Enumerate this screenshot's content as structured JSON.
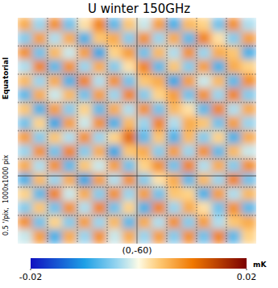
{
  "chart_data": {
    "type": "heatmap",
    "title": "U winter 150GHz",
    "annotations": [
      "Equatorial",
      "0.5 '/pix,  1000x1000 pix",
      "(0,-60)"
    ],
    "grid": true,
    "tick_labels": false,
    "cells": [
      [
        0.006,
        -0.004,
        0.008,
        -0.006,
        0.002,
        0.009,
        -0.007,
        0.004,
        -0.002,
        0.007,
        -0.008,
        0.005,
        0.003,
        -0.006,
        0.008,
        -0.003
      ],
      [
        -0.005,
        0.007,
        -0.003,
        0.006,
        -0.008,
        0.004,
        0.006,
        -0.005,
        0.008,
        -0.004,
        0.006,
        -0.007,
        0.009,
        0.002,
        -0.005,
        0.007
      ],
      [
        0.008,
        -0.006,
        0.005,
        -0.002,
        0.007,
        -0.009,
        0.003,
        0.007,
        -0.006,
        0.005,
        -0.003,
        0.008,
        -0.004,
        0.006,
        0.004,
        -0.008
      ],
      [
        -0.003,
        0.009,
        -0.007,
        0.008,
        -0.004,
        0.006,
        -0.005,
        0.002,
        0.009,
        -0.007,
        0.004,
        -0.005,
        0.007,
        -0.008,
        0.006,
        0.003
      ],
      [
        0.005,
        -0.004,
        0.006,
        -0.008,
        0.009,
        -0.003,
        0.008,
        -0.006,
        0.004,
        0.006,
        -0.009,
        0.007,
        -0.002,
        0.005,
        -0.007,
        0.008
      ],
      [
        -0.007,
        0.006,
        -0.002,
        0.005,
        -0.006,
        0.007,
        -0.004,
        0.009,
        -0.005,
        0.003,
        0.007,
        -0.006,
        0.008,
        -0.004,
        0.009,
        -0.005
      ],
      [
        0.004,
        -0.008,
        0.007,
        -0.005,
        0.003,
        -0.007,
        0.006,
        -0.003,
        0.008,
        -0.006,
        0.005,
        0.002,
        -0.007,
        0.009,
        -0.003,
        0.006
      ],
      [
        -0.006,
        0.003,
        -0.009,
        0.007,
        -0.002,
        0.008,
        -0.008,
        0.005,
        -0.004,
        0.009,
        -0.003,
        0.006,
        0.004,
        -0.006,
        0.007,
        -0.004
      ],
      [
        0.007,
        -0.005,
        0.004,
        -0.003,
        0.008,
        -0.004,
        0.003,
        0.011,
        -0.007,
        0.004,
        -0.008,
        0.005,
        -0.005,
        0.003,
        -0.008,
        0.006
      ],
      [
        -0.004,
        0.008,
        -0.006,
        0.009,
        -0.005,
        0.006,
        -0.009,
        0.004,
        0.006,
        -0.005,
        0.007,
        -0.004,
        0.008,
        -0.007,
        0.005,
        -0.002
      ],
      [
        0.006,
        -0.003,
        0.008,
        -0.007,
        0.004,
        -0.002,
        0.007,
        -0.006,
        0.003,
        0.008,
        -0.006,
        0.009,
        -0.003,
        0.006,
        -0.005,
        0.008
      ],
      [
        -0.008,
        0.005,
        -0.004,
        0.006,
        -0.009,
        0.007,
        -0.003,
        0.008,
        -0.005,
        0.002,
        0.006,
        -0.007,
        0.005,
        -0.004,
        0.009,
        -0.006
      ],
      [
        0.003,
        -0.007,
        0.009,
        -0.002,
        0.006,
        -0.005,
        0.008,
        -0.004,
        0.007,
        -0.006,
        0.004,
        0.003,
        -0.008,
        0.007,
        -0.003,
        0.005
      ],
      [
        -0.005,
        0.004,
        -0.006,
        0.008,
        -0.003,
        0.009,
        -0.006,
        0.003,
        -0.008,
        0.009,
        -0.004,
        0.006,
        0.002,
        -0.006,
        0.008,
        -0.007
      ],
      [
        0.008,
        -0.006,
        0.003,
        -0.005,
        0.007,
        -0.004,
        0.005,
        -0.007,
        0.006,
        -0.003,
        0.008,
        -0.005,
        0.007,
        -0.003,
        0.004,
        0.006
      ],
      [
        -0.002,
        0.007,
        -0.008,
        0.006,
        -0.004,
        0.008,
        -0.002,
        0.006,
        -0.004,
        0.007,
        -0.005,
        0.008,
        -0.006,
        0.009,
        -0.007,
        0.003
      ]
    ],
    "colorbar": {
      "range": [
        -0.02,
        0.02
      ],
      "ticks": [
        -0.02,
        0.02
      ],
      "label": "mK"
    }
  }
}
